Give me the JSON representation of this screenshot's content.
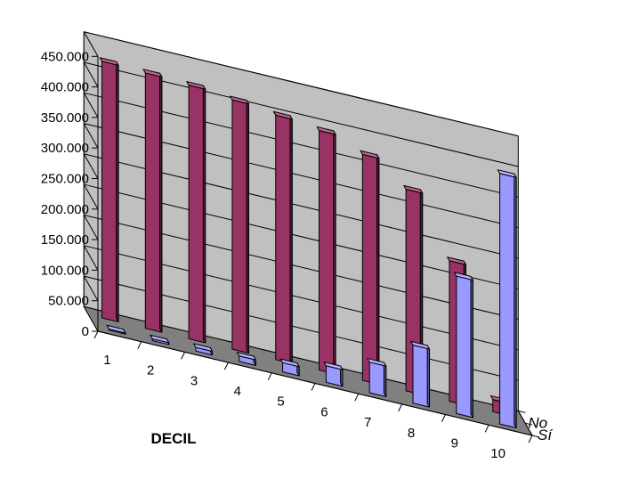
{
  "chart_data": {
    "type": "bar",
    "subtype": "3d-column",
    "xlabel": "DECIL",
    "categories": [
      "1",
      "2",
      "3",
      "4",
      "5",
      "6",
      "7",
      "8",
      "9",
      "10"
    ],
    "ylim": [
      0,
      450000
    ],
    "y_tick_labels": [
      "0",
      "50.000",
      "100.000",
      "150.000",
      "200.000",
      "250.000",
      "300.000",
      "350.000",
      "400.000",
      "450.000"
    ],
    "grid": true,
    "series": [
      {
        "name": "No",
        "color": "#993366",
        "values": [
          420000,
          418000,
          415000,
          408000,
          400000,
          392000,
          370000,
          330000,
          230000,
          20000
        ]
      },
      {
        "name": "Sí",
        "color": "#9999FF",
        "values": [
          2000,
          3000,
          6000,
          9000,
          15000,
          27000,
          50000,
          95000,
          225000,
          410000
        ]
      }
    ]
  }
}
